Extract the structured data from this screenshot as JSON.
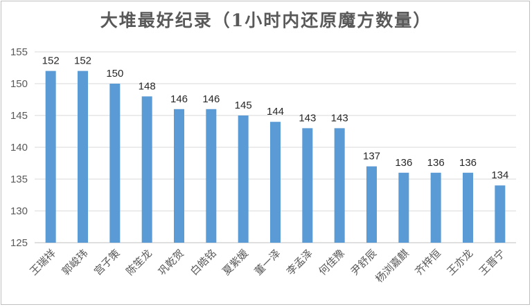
{
  "chart_data": {
    "type": "bar",
    "title": "大堆最好纪录（1小时内还原魔方数量）",
    "xlabel": "",
    "ylabel": "",
    "ylim": [
      125,
      155
    ],
    "yticks": [
      125,
      130,
      135,
      140,
      145,
      150,
      155
    ],
    "grid": true,
    "legend": "none",
    "bar_color": "#5b9bd5",
    "categories": [
      "王瑞祥",
      "郭峻玮",
      "宫子策",
      "陈笙龙",
      "巩乾贺",
      "白皓铭",
      "夏紫媛",
      "董一泽",
      "李孟泽",
      "何佳豫",
      "尹舒辰",
      "杨浏嘉麒",
      "齐梓恒",
      "王亦龙",
      "王晋宁"
    ],
    "values": [
      152,
      152,
      150,
      148,
      146,
      146,
      145,
      144,
      143,
      143,
      137,
      136,
      136,
      136,
      134
    ]
  }
}
